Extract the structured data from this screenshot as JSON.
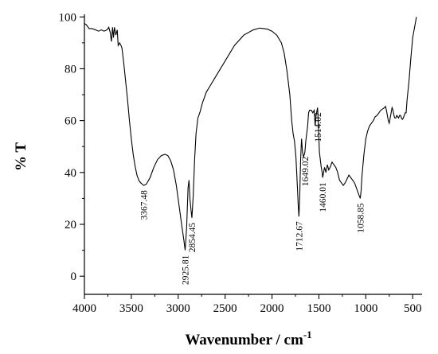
{
  "chart_data": {
    "type": "line",
    "xlabel": "Wavenumber / cm",
    "xlabel_sup": "-1",
    "ylabel": "% T",
    "xlim": [
      4000,
      400
    ],
    "ylim": [
      -7,
      101
    ],
    "x_ticks": [
      4000,
      3500,
      3000,
      2500,
      2000,
      1500,
      1000,
      500
    ],
    "y_ticks": [
      0,
      20,
      40,
      60,
      80,
      100
    ],
    "grid": false,
    "series": [
      {
        "points": [
          [
            4000,
            97.5
          ],
          [
            3980,
            97
          ],
          [
            3950,
            95.5
          ],
          [
            3920,
            95.5
          ],
          [
            3880,
            95
          ],
          [
            3850,
            94.5
          ],
          [
            3820,
            95
          ],
          [
            3790,
            94.5
          ],
          [
            3760,
            95
          ],
          [
            3740,
            96
          ],
          [
            3725,
            94
          ],
          [
            3712,
            90.5
          ],
          [
            3700,
            96
          ],
          [
            3690,
            92
          ],
          [
            3680,
            96
          ],
          [
            3665,
            93
          ],
          [
            3650,
            95
          ],
          [
            3640,
            89
          ],
          [
            3625,
            90
          ],
          [
            3610,
            89
          ],
          [
            3600,
            88
          ],
          [
            3580,
            82
          ],
          [
            3560,
            75
          ],
          [
            3540,
            68
          ],
          [
            3520,
            60
          ],
          [
            3500,
            53
          ],
          [
            3480,
            47
          ],
          [
            3460,
            42.5
          ],
          [
            3440,
            39
          ],
          [
            3420,
            37
          ],
          [
            3400,
            36
          ],
          [
            3367,
            35
          ],
          [
            3340,
            35.5
          ],
          [
            3300,
            38
          ],
          [
            3260,
            42
          ],
          [
            3220,
            45
          ],
          [
            3180,
            46.5
          ],
          [
            3140,
            47
          ],
          [
            3110,
            46.5
          ],
          [
            3080,
            44.5
          ],
          [
            3050,
            41
          ],
          [
            3020,
            35
          ],
          [
            2990,
            27
          ],
          [
            2960,
            19
          ],
          [
            2940,
            14
          ],
          [
            2926,
            10
          ],
          [
            2910,
            19
          ],
          [
            2895,
            34
          ],
          [
            2885,
            37
          ],
          [
            2875,
            30
          ],
          [
            2862,
            25
          ],
          [
            2854,
            22.5
          ],
          [
            2840,
            31
          ],
          [
            2825,
            45
          ],
          [
            2810,
            55
          ],
          [
            2790,
            61
          ],
          [
            2770,
            63
          ],
          [
            2740,
            67
          ],
          [
            2700,
            71
          ],
          [
            2650,
            74
          ],
          [
            2600,
            77
          ],
          [
            2500,
            83
          ],
          [
            2400,
            89
          ],
          [
            2300,
            93
          ],
          [
            2200,
            95
          ],
          [
            2130,
            95.7
          ],
          [
            2050,
            95.3
          ],
          [
            2000,
            94.5
          ],
          [
            1950,
            93
          ],
          [
            1900,
            90
          ],
          [
            1870,
            86
          ],
          [
            1840,
            79
          ],
          [
            1810,
            70
          ],
          [
            1790,
            60
          ],
          [
            1775,
            55
          ],
          [
            1760,
            52
          ],
          [
            1745,
            46
          ],
          [
            1730,
            35
          ],
          [
            1720,
            27
          ],
          [
            1713,
            23
          ],
          [
            1705,
            30
          ],
          [
            1695,
            45
          ],
          [
            1685,
            53
          ],
          [
            1675,
            48
          ],
          [
            1665,
            46
          ],
          [
            1655,
            47
          ],
          [
            1649,
            48
          ],
          [
            1640,
            52
          ],
          [
            1630,
            55
          ],
          [
            1620,
            58
          ],
          [
            1610,
            63
          ],
          [
            1600,
            64
          ],
          [
            1580,
            64
          ],
          [
            1565,
            63
          ],
          [
            1550,
            64
          ],
          [
            1540,
            58
          ],
          [
            1530,
            62
          ],
          [
            1520,
            64
          ],
          [
            1514,
            65
          ],
          [
            1505,
            58
          ],
          [
            1495,
            48
          ],
          [
            1485,
            45
          ],
          [
            1475,
            42
          ],
          [
            1465,
            40
          ],
          [
            1460,
            38
          ],
          [
            1450,
            40
          ],
          [
            1440,
            42
          ],
          [
            1425,
            40
          ],
          [
            1410,
            43
          ],
          [
            1395,
            41
          ],
          [
            1380,
            42
          ],
          [
            1360,
            44
          ],
          [
            1340,
            43
          ],
          [
            1320,
            42
          ],
          [
            1300,
            40
          ],
          [
            1280,
            37
          ],
          [
            1260,
            36
          ],
          [
            1240,
            35
          ],
          [
            1220,
            36
          ],
          [
            1200,
            37.5
          ],
          [
            1180,
            39
          ],
          [
            1160,
            38
          ],
          [
            1140,
            37
          ],
          [
            1120,
            36
          ],
          [
            1100,
            34
          ],
          [
            1080,
            32
          ],
          [
            1059,
            30
          ],
          [
            1050,
            33
          ],
          [
            1040,
            39
          ],
          [
            1020,
            47
          ],
          [
            1000,
            53
          ],
          [
            980,
            56
          ],
          [
            960,
            58
          ],
          [
            940,
            59
          ],
          [
            920,
            60
          ],
          [
            900,
            61.5
          ],
          [
            880,
            62
          ],
          [
            860,
            63
          ],
          [
            840,
            64
          ],
          [
            820,
            64.5
          ],
          [
            800,
            65
          ],
          [
            790,
            65.5
          ],
          [
            780,
            64
          ],
          [
            770,
            62
          ],
          [
            760,
            60
          ],
          [
            750,
            59
          ],
          [
            740,
            61
          ],
          [
            730,
            63
          ],
          [
            720,
            65
          ],
          [
            710,
            64
          ],
          [
            700,
            62
          ],
          [
            690,
            61
          ],
          [
            680,
            61
          ],
          [
            670,
            62
          ],
          [
            660,
            61.5
          ],
          [
            650,
            61
          ],
          [
            640,
            62
          ],
          [
            630,
            62
          ],
          [
            620,
            61
          ],
          [
            610,
            60.5
          ],
          [
            600,
            61
          ],
          [
            590,
            62
          ],
          [
            580,
            63
          ],
          [
            570,
            63
          ],
          [
            560,
            68
          ],
          [
            540,
            75
          ],
          [
            520,
            84
          ],
          [
            500,
            92
          ],
          [
            480,
            96
          ],
          [
            460,
            100
          ]
        ]
      }
    ],
    "annotations": [
      {
        "label": "3367.48",
        "x": 3367,
        "y": 35
      },
      {
        "label": "2925.81",
        "x": 2926,
        "y": 10
      },
      {
        "label": "2854.45",
        "x": 2854,
        "y": 22.5
      },
      {
        "label": "1712.67",
        "x": 1713,
        "y": 23
      },
      {
        "label": "1649.02",
        "x": 1649,
        "y": 48
      },
      {
        "label": "1514.02",
        "x": 1514,
        "y": 65
      },
      {
        "label": "1460.01",
        "x": 1460,
        "y": 38
      },
      {
        "label": "1058.85",
        "x": 1059,
        "y": 30
      }
    ]
  }
}
